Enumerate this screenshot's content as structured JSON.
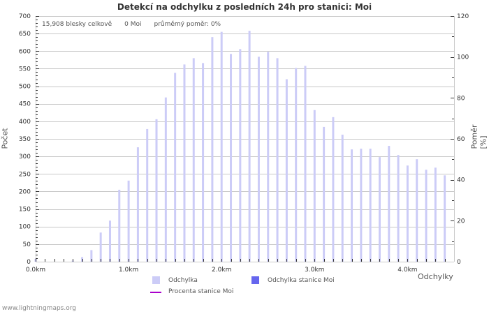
{
  "title": "Detekcí na odchylku z posledních 24h pro stanici: Moi",
  "stats": {
    "total": "15,908 blesky celkově",
    "station": "0 Moi",
    "ratio": "průměmý poměr: 0%"
  },
  "axes": {
    "left_label": "Počet",
    "right_label": "Poměr [%]",
    "x_label": "Odchylky",
    "left_ticks": [
      "0",
      "50",
      "100",
      "150",
      "200",
      "250",
      "300",
      "350",
      "400",
      "450",
      "500",
      "550",
      "600",
      "650",
      "700"
    ],
    "right_ticks": [
      "0",
      "20",
      "40",
      "60",
      "80",
      "100",
      "120"
    ],
    "x_ticks": [
      "0.0km",
      "1.0km",
      "2.0km",
      "3.0km",
      "4.0km"
    ]
  },
  "legend": {
    "item1": "Odchylka",
    "item2": "Odchylka stanice Moi",
    "item3": "Procenta stanice Moi"
  },
  "colors": {
    "bar": "#ccccf7",
    "station_bar": "#6666ee",
    "ratio_line": "#aa00cc",
    "grid": "#c8c8c8"
  },
  "footer": "www.lightningmaps.org",
  "chart_data": {
    "type": "bar",
    "title": "Detekcí na odchylku z posledních 24h pro stanici: Moi",
    "xlabel": "Odchylky",
    "ylabel": "Počet",
    "y2label": "Poměr [%]",
    "ylim": [
      0,
      700
    ],
    "y2lim": [
      0,
      120
    ],
    "grid": true,
    "legend_position": "bottom",
    "categories": [
      "0.0",
      "0.1",
      "0.2",
      "0.3",
      "0.4",
      "0.5",
      "0.6",
      "0.7",
      "0.8",
      "0.9",
      "1.0",
      "1.1",
      "1.2",
      "1.3",
      "1.4",
      "1.5",
      "1.6",
      "1.7",
      "1.8",
      "1.9",
      "2.0",
      "2.1",
      "2.2",
      "2.3",
      "2.4",
      "2.5",
      "2.6",
      "2.7",
      "2.8",
      "2.9",
      "3.0",
      "3.1",
      "3.2",
      "3.3",
      "3.4",
      "3.5",
      "3.6",
      "3.7",
      "3.8",
      "3.9",
      "4.0",
      "4.1",
      "4.2",
      "4.3",
      "4.4"
    ],
    "series": [
      {
        "name": "Odchylka",
        "values": [
          8,
          0,
          0,
          0,
          3,
          13,
          33,
          83,
          117,
          205,
          231,
          326,
          378,
          406,
          468,
          538,
          562,
          580,
          566,
          640,
          655,
          592,
          606,
          658,
          584,
          598,
          580,
          520,
          552,
          558,
          432,
          384,
          412,
          362,
          320,
          322,
          322,
          298,
          330,
          304,
          274,
          292,
          262,
          268,
          246
        ]
      },
      {
        "name": "Odchylka stanice Moi",
        "values": [
          0,
          0,
          0,
          0,
          0,
          0,
          0,
          0,
          0,
          0,
          0,
          0,
          0,
          0,
          0,
          0,
          0,
          0,
          0,
          0,
          0,
          0,
          0,
          0,
          0,
          0,
          0,
          0,
          0,
          0,
          0,
          0,
          0,
          0,
          0,
          0,
          0,
          0,
          0,
          0,
          0,
          0,
          0,
          0,
          0
        ]
      },
      {
        "name": "Procenta stanice Moi",
        "values": []
      }
    ]
  }
}
